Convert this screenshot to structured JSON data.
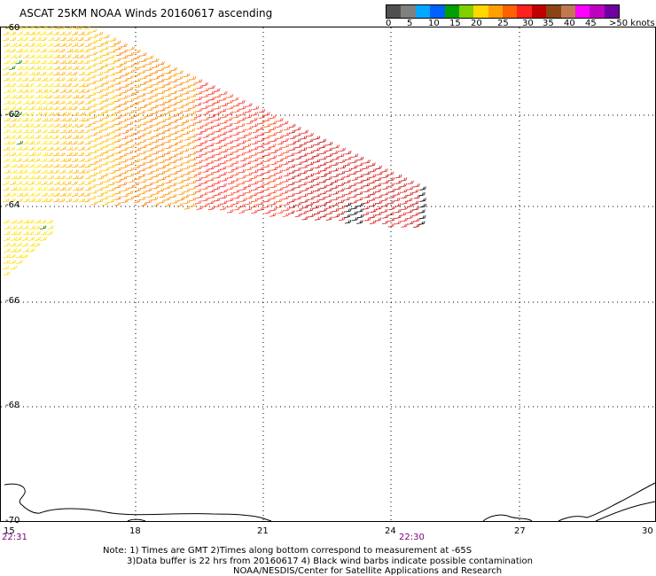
{
  "title": "ASCAT 25KM NOAA Winds 20160617 ascending",
  "scale": {
    "colors": [
      "#505050",
      "#808080",
      "#00a8ff",
      "#0060ff",
      "#00a000",
      "#80d000",
      "#ffd800",
      "#ffa000",
      "#ff6000",
      "#ff2020",
      "#c00000",
      "#8b4513",
      "#c07850",
      "#ff00ff",
      "#c000c0",
      "#7000a0"
    ],
    "labels": [
      "0",
      "5",
      "10",
      "15",
      "20",
      "25",
      "30",
      "35",
      "40",
      "45",
      ">50 knots"
    ]
  },
  "axes": {
    "lat_labels": [
      "-60",
      "-62",
      "-64",
      "-66",
      "-68",
      "-70"
    ],
    "lon_labels": [
      "15",
      "18",
      "21",
      "24",
      "27",
      "30"
    ]
  },
  "times": [
    "22:31",
    "22:30"
  ],
  "notes": {
    "line1": "Note: 1) Times are GMT 2)Times along bottom correspond to measurement at -65S",
    "line2": "3)Data buffer is 22 hrs from 20160617 4) Black wind barbs indicate possible contamination",
    "line3": "NOAA/NESDIS/Center for Satellite Applications and Research"
  }
}
